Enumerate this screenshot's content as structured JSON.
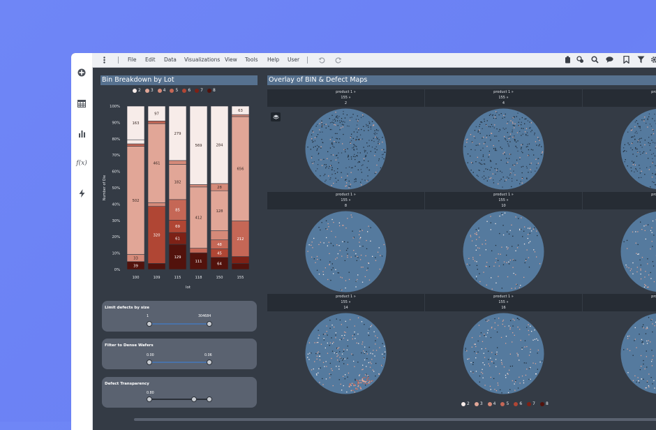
{
  "menu": [
    "File",
    "Edit",
    "Data",
    "Visualizations",
    "View",
    "Tools",
    "Help",
    "User"
  ],
  "left_panel": {
    "title": "Bin Breakdown by Lot",
    "legend": [
      {
        "label": "2",
        "color": "#f7ece9"
      },
      {
        "label": "3",
        "color": "#e1a697"
      },
      {
        "label": "4",
        "color": "#d58a79"
      },
      {
        "label": "5",
        "color": "#c56756"
      },
      {
        "label": "6",
        "color": "#b04634"
      },
      {
        "label": "7",
        "color": "#7d2116"
      },
      {
        "label": "8",
        "color": "#52120c"
      }
    ]
  },
  "chart_data": {
    "type": "bar",
    "stacked": true,
    "normalized": true,
    "xlabel": "lot",
    "ylabel": "Number of Die",
    "ylim": [
      0,
      100
    ],
    "y_ticks": [
      "0%",
      "10%",
      "20%",
      "30%",
      "40%",
      "50%",
      "60%",
      "70%",
      "80%",
      "90%",
      "100%"
    ],
    "categories": [
      "100",
      "109",
      "115",
      "118",
      "150",
      "155"
    ],
    "stacks": [
      [
        {
          "bin": "8",
          "pct": 4.8,
          "label": "39"
        },
        {
          "bin": "4",
          "pct": 4.4,
          "label": "33"
        },
        {
          "bin": "3",
          "pct": 66.2,
          "label": "502"
        },
        {
          "bin": "5",
          "pct": 1.5,
          "label": ""
        },
        {
          "bin": "2",
          "pct": 2.5,
          "label": ""
        },
        {
          "bin": "2",
          "pct": 20.6,
          "label": "163"
        }
      ],
      [
        {
          "bin": "8",
          "pct": 3.7,
          "label": ""
        },
        {
          "bin": "6",
          "pct": 34.9,
          "label": "320"
        },
        {
          "bin": "4",
          "pct": 2.3,
          "label": ""
        },
        {
          "bin": "3",
          "pct": 48.4,
          "label": "461"
        },
        {
          "bin": "5",
          "pct": 1.6,
          "label": ""
        },
        {
          "bin": "2",
          "pct": 9.1,
          "label": "97"
        }
      ],
      [
        {
          "bin": "8",
          "pct": 15.4,
          "label": "129"
        },
        {
          "bin": "7",
          "pct": 7.2,
          "label": "61"
        },
        {
          "bin": "6",
          "pct": 7.6,
          "label": "69"
        },
        {
          "bin": "5",
          "pct": 12.6,
          "label": "85"
        },
        {
          "bin": "3",
          "pct": 21.5,
          "label": "182"
        },
        {
          "bin": "4",
          "pct": 2.4,
          "label": ""
        },
        {
          "bin": "2",
          "pct": 33.3,
          "label": "279"
        }
      ],
      [
        {
          "bin": "8",
          "pct": 10.2,
          "label": "111"
        },
        {
          "bin": "5",
          "pct": 2.8,
          "label": ""
        },
        {
          "bin": "3",
          "pct": 37.5,
          "label": "412"
        },
        {
          "bin": "4",
          "pct": 1.5,
          "label": ""
        },
        {
          "bin": "2",
          "pct": 48.0,
          "label": "569"
        }
      ],
      [
        {
          "bin": "8",
          "pct": 7.4,
          "label": "64"
        },
        {
          "bin": "6",
          "pct": 5.2,
          "label": "45"
        },
        {
          "bin": "5",
          "pct": 5.5,
          "label": "48"
        },
        {
          "bin": "4",
          "pct": 5.6,
          "label": ""
        },
        {
          "bin": "3",
          "pct": 24.5,
          "label": "128"
        },
        {
          "bin": "4",
          "pct": 4.4,
          "label": "28"
        },
        {
          "bin": "2",
          "pct": 47.4,
          "label": "284"
        }
      ],
      [
        {
          "bin": "8",
          "pct": 3.7,
          "label": ""
        },
        {
          "bin": "7",
          "pct": 4.2,
          "label": ""
        },
        {
          "bin": "5",
          "pct": 21.8,
          "label": "212"
        },
        {
          "bin": "3",
          "pct": 63.9,
          "label": "656"
        },
        {
          "bin": "4",
          "pct": 1.2,
          "label": ""
        },
        {
          "bin": "2",
          "pct": 5.2,
          "label": "63"
        }
      ]
    ]
  },
  "controls": [
    {
      "title": "Limit defects by size",
      "min": "1",
      "max": "304684"
    },
    {
      "title": "Filter to Dense Wafers",
      "min": "0.00",
      "max": "0.06"
    },
    {
      "title": "Defect Transparency",
      "min": "0.80",
      "max": ""
    }
  ],
  "right_panel": {
    "title": "Overlay of BIN & Defect Maps",
    "cells": [
      {
        "product": "product 1 »",
        "lot": "155 »",
        "wafer": "2"
      },
      {
        "product": "product 1 »",
        "lot": "155 »",
        "wafer": "4"
      },
      {
        "product": "product 1 »",
        "lot": "155 »",
        "wafer": ""
      },
      {
        "product": "product 1 »",
        "lot": "155 »",
        "wafer": "8"
      },
      {
        "product": "product 1 »",
        "lot": "155 »",
        "wafer": "10"
      },
      {
        "product": "product 1 »",
        "lot": "155 »",
        "wafer": ""
      },
      {
        "product": "product 1 »",
        "lot": "155 »",
        "wafer": "14"
      },
      {
        "product": "product 1 »",
        "lot": "155 »",
        "wafer": "16"
      },
      {
        "product": "product 1 »",
        "lot": "155 »",
        "wafer": ""
      }
    ]
  },
  "icons": {
    "left": [
      "add-icon",
      "table-icon",
      "bar-chart-icon",
      "function-icon",
      "lightning-icon"
    ],
    "top": [
      "menu-dots-icon",
      "undo-icon",
      "redo-icon",
      "bookmark-tag-icon",
      "share-icon",
      "search-icon",
      "comment-icon",
      "bookmark-icon",
      "filter-icon",
      "gear-icon"
    ]
  }
}
